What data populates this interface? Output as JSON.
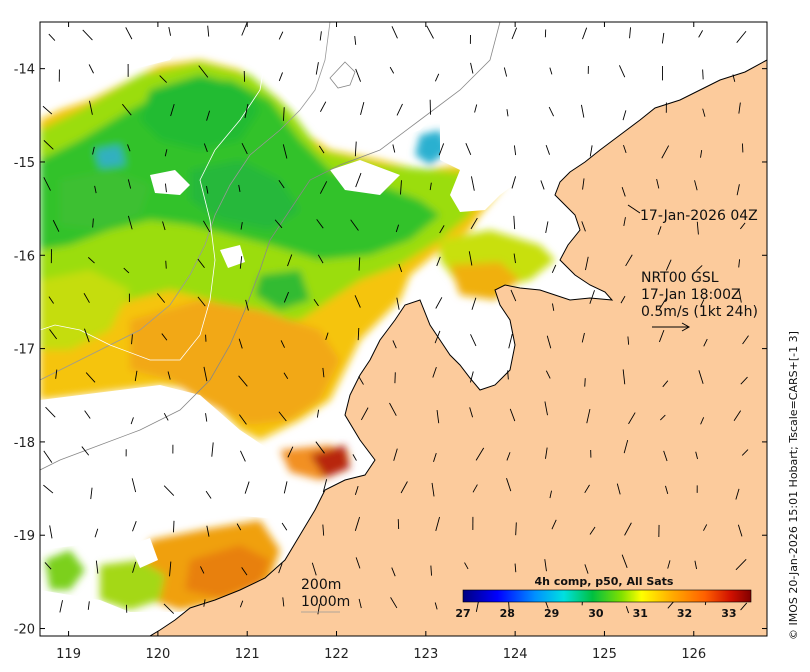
{
  "map": {
    "lat_ticks": [
      "-14",
      "-15",
      "-16",
      "-17",
      "-18",
      "-19",
      "-20"
    ],
    "lon_ticks": [
      "119",
      "120",
      "121",
      "122",
      "123",
      "124",
      "125",
      "126"
    ],
    "lat_range": [
      -20.08,
      -13.5
    ],
    "lon_range": [
      118.68,
      126.82
    ],
    "annotations": {
      "timestamp": "17-Jan-2026 04Z",
      "model_line1": "NRT00 GSL",
      "model_line2": "17-Jan 18:00Z",
      "model_line3": "0.5m/s (1kt 24h)",
      "depth_200": "200m",
      "depth_1000": "1000m"
    },
    "credit": "© IMOS 20-Jan-2026 15:01 Hobart; Tscale=CARS+[-1 3]",
    "colors": {
      "land": "#fccb9c",
      "ocean": "#ffffff"
    }
  },
  "colorbar": {
    "title": "4h comp, p50, All Sats",
    "labels": [
      "27",
      "28",
      "29",
      "30",
      "31",
      "32",
      "33"
    ],
    "range": [
      27,
      33.5
    ]
  }
}
